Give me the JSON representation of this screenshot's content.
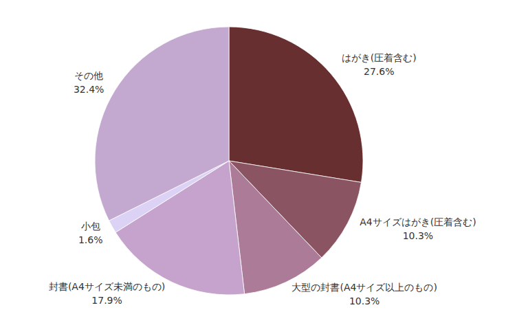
{
  "chart_data": {
    "type": "pie",
    "categories": [
      "はがき(圧着含む)",
      "A4サイズはがき(圧着含む)",
      "大型の封書(A4サイズ以上のもの)",
      "封書(A4サイズ未満のもの)",
      "小包",
      "その他"
    ],
    "values": [
      27.6,
      10.3,
      10.3,
      17.9,
      1.6,
      32.4
    ],
    "value_labels": [
      "27.6%",
      "10.3%",
      "10.3%",
      "17.9%",
      "1.6%",
      "32.4%"
    ],
    "colors": [
      "#672f30",
      "#8b5462",
      "#ab7b97",
      "#c6a3cd",
      "#dcd2f5",
      "#c3a9d0"
    ],
    "data_labels": true
  }
}
